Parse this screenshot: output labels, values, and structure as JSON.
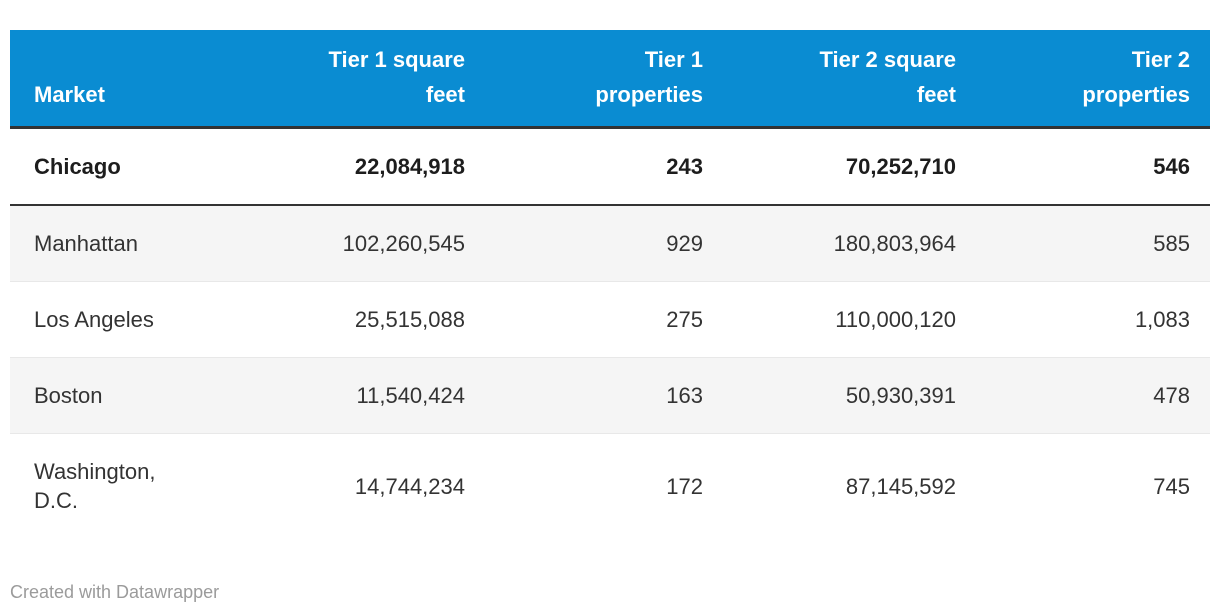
{
  "colors": {
    "header_bg": "#0a8cd2",
    "header_text": "#ffffff",
    "dark_border": "#333333",
    "row_stripe_bg": "#f5f5f5",
    "row_border": "#e8e8e8",
    "body_text": "#333333",
    "attribution_text": "#9b9b9b"
  },
  "table": {
    "columns": [
      {
        "label": "Market",
        "align": "left"
      },
      {
        "label": "Tier 1 square feet",
        "align": "right"
      },
      {
        "label": "Tier 1 properties",
        "align": "right"
      },
      {
        "label": "Tier 2 square feet",
        "align": "right"
      },
      {
        "label": "Tier 2 properties",
        "align": "right"
      }
    ],
    "rows": [
      {
        "highlighted": true,
        "cells": [
          "Chicago",
          "22,084,918",
          "243",
          "70,252,710",
          "546"
        ]
      },
      {
        "highlighted": false,
        "cells": [
          "Manhattan",
          "102,260,545",
          "929",
          "180,803,964",
          "585"
        ]
      },
      {
        "highlighted": false,
        "cells": [
          "Los Angeles",
          "25,515,088",
          "275",
          "110,000,120",
          "1,083"
        ]
      },
      {
        "highlighted": false,
        "cells": [
          "Boston",
          "11,540,424",
          "163",
          "50,930,391",
          "478"
        ]
      },
      {
        "highlighted": false,
        "cells": [
          "Washington, D.C.",
          "14,744,234",
          "172",
          "87,145,592",
          "745"
        ]
      }
    ]
  },
  "footer": {
    "attribution": "Created with Datawrapper"
  },
  "chart_data": {
    "type": "table",
    "title": "",
    "columns": [
      "Market",
      "Tier 1 square feet",
      "Tier 1 properties",
      "Tier 2 square feet",
      "Tier 2 properties"
    ],
    "rows": [
      [
        "Chicago",
        22084918,
        243,
        70252710,
        546
      ],
      [
        "Manhattan",
        102260545,
        929,
        180803964,
        585
      ],
      [
        "Los Angeles",
        25515088,
        275,
        110000120,
        1083
      ],
      [
        "Boston",
        11540424,
        163,
        50930391,
        478
      ],
      [
        "Washington, D.C.",
        14744234,
        172,
        87145592,
        745
      ]
    ],
    "notes": "First row (Chicago) is emphasized in bold with a dark underline; rows 2 and 4 have light gray zebra striping; header has blue background with white bold right-aligned labels (Market left-aligned)."
  }
}
